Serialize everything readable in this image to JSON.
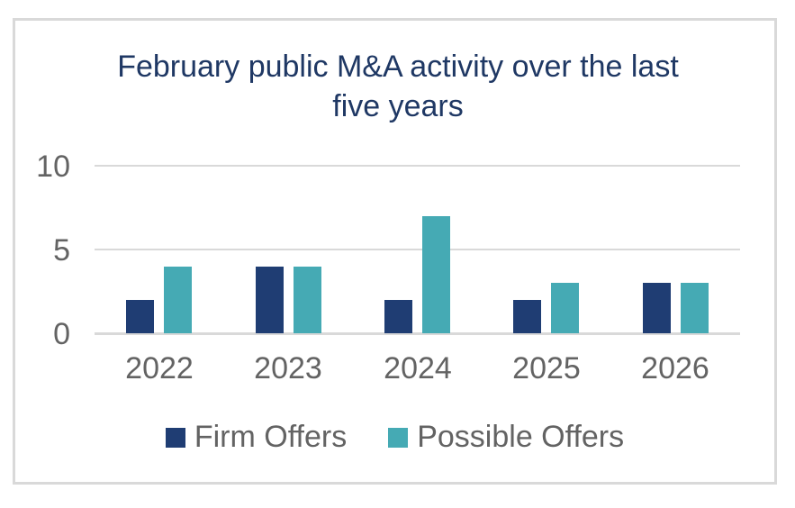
{
  "chart_data": {
    "type": "bar",
    "title": "February public M&A activity over the last five years",
    "categories": [
      "2022",
      "2023",
      "2024",
      "2025",
      "2026"
    ],
    "series": [
      {
        "name": "Firm Offers",
        "values": [
          2,
          4,
          2,
          2,
          3
        ],
        "color": "#1f3d73"
      },
      {
        "name": "Possible Offers",
        "values": [
          4,
          4,
          7,
          3,
          3
        ],
        "color": "#45aab4"
      }
    ],
    "xlabel": "",
    "ylabel": "",
    "ylim": [
      0,
      10
    ],
    "yticks": [
      0,
      5,
      10
    ],
    "grid": true,
    "legend_position": "bottom"
  },
  "colors": {
    "title_text": "#1f3864",
    "axis_text": "#636363",
    "gridline": "#d9d9d9",
    "frame_border": "#d9d9d9",
    "background": "#ffffff"
  }
}
